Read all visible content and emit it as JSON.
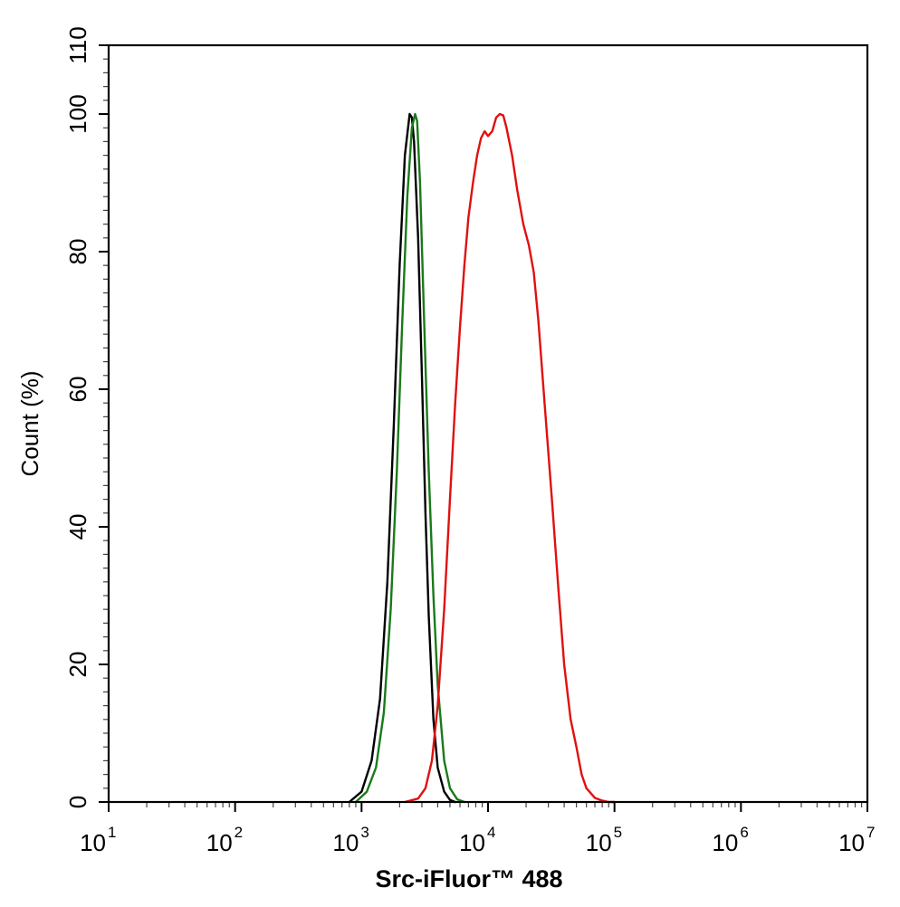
{
  "chart_data": {
    "type": "line",
    "xlabel": "Src-iFluor™ 488",
    "ylabel": "Count  (%)",
    "xscale": "log",
    "xlim": [
      10,
      10000000
    ],
    "ylim": [
      0,
      110
    ],
    "x_ticks": [
      {
        "base": "10",
        "exp": "1",
        "value": 10
      },
      {
        "base": "10",
        "exp": "2",
        "value": 100
      },
      {
        "base": "10",
        "exp": "3",
        "value": 1000
      },
      {
        "base": "10",
        "exp": "4",
        "value": 10000
      },
      {
        "base": "10",
        "exp": "5",
        "value": 100000
      },
      {
        "base": "10",
        "exp": "6",
        "value": 1000000
      },
      {
        "base": "10",
        "exp": "7",
        "value": 10000000
      }
    ],
    "y_ticks": [
      {
        "label": "0",
        "value": 0
      },
      {
        "label": "20",
        "value": 20
      },
      {
        "label": "40",
        "value": 40
      },
      {
        "label": "60",
        "value": 60
      },
      {
        "label": "80",
        "value": 80
      },
      {
        "label": "100",
        "value": 100
      },
      {
        "label": "110",
        "value": 110
      }
    ],
    "grid": false,
    "legend": "none",
    "series": [
      {
        "color": "#000000",
        "x": [
          800,
          1000,
          1200,
          1400,
          1600,
          1800,
          2000,
          2200,
          2400,
          2500,
          2600,
          2800,
          3000,
          3200,
          3400,
          3700,
          4000,
          4500,
          5000,
          5500
        ],
        "y": [
          0,
          1.5,
          6,
          15,
          32,
          55,
          78,
          94,
          100,
          99.5,
          96,
          82,
          62,
          42,
          27,
          12,
          5,
          1.5,
          0.3,
          0
        ]
      },
      {
        "color": "#1a7a1a",
        "x": [
          900,
          1100,
          1300,
          1500,
          1700,
          1900,
          2100,
          2300,
          2500,
          2650,
          2750,
          2900,
          3100,
          3400,
          3700,
          4000,
          4500,
          5000,
          5700,
          6500
        ],
        "y": [
          0,
          1.5,
          5,
          13,
          28,
          48,
          70,
          88,
          98,
          100,
          99,
          90,
          72,
          48,
          30,
          17,
          6,
          2,
          0.4,
          0
        ]
      },
      {
        "color": "#e01010",
        "x": [
          2200,
          2800,
          3200,
          3600,
          4000,
          4500,
          5000,
          5500,
          6000,
          6500,
          7000,
          7600,
          8200,
          8800,
          9400,
          10000,
          10800,
          11600,
          12400,
          13200,
          14000,
          15500,
          17000,
          19000,
          21000,
          23000,
          25000,
          28000,
          32000,
          36000,
          40000,
          45000,
          50000,
          55000,
          60000,
          70000,
          80000,
          90000,
          100000
        ],
        "y": [
          0,
          0.5,
          2,
          6,
          14,
          28,
          44,
          58,
          69,
          78,
          85,
          90,
          94,
          96.5,
          97.5,
          96.8,
          97.5,
          99.5,
          100,
          99.8,
          98,
          94,
          89,
          84,
          81,
          77,
          70,
          58,
          44,
          31,
          20,
          12,
          8,
          4,
          2,
          0.6,
          0.2,
          0,
          0
        ]
      }
    ]
  }
}
